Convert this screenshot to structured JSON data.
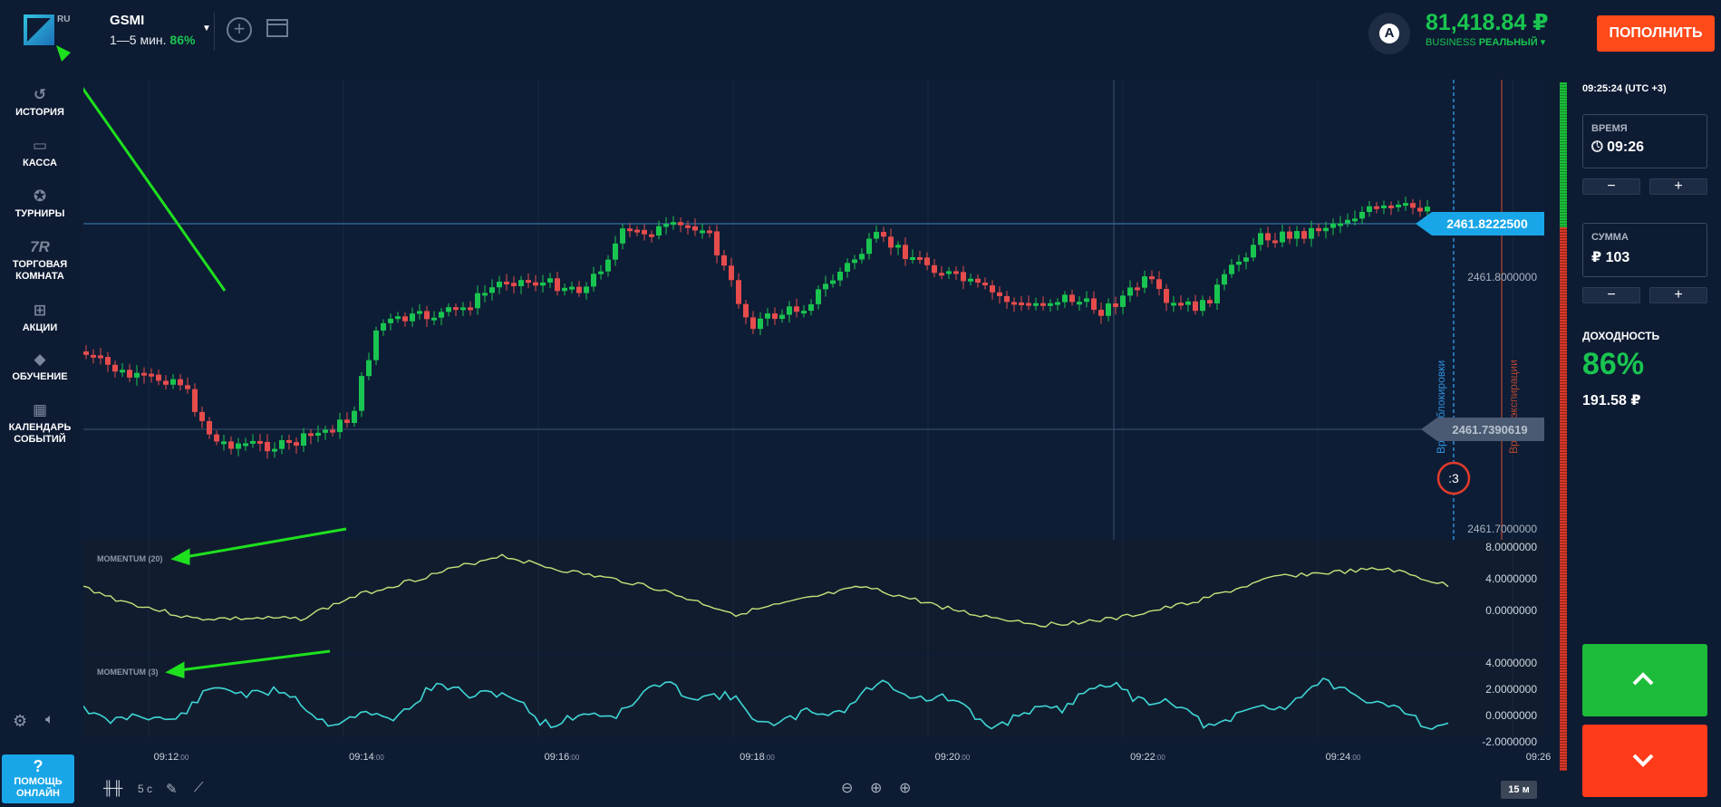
{
  "header": {
    "logo_badge": "RU",
    "asset_name": "GSMI",
    "asset_period": "1—5 мин.",
    "asset_payout": "86%",
    "account_icon": "A",
    "balance": "81,418.84 ₽",
    "account_type": "BUSINESS",
    "account_mode": "РЕАЛЬНЫЙ ▾",
    "deposit_label": "ПОПОЛНИТЬ"
  },
  "sidebar": {
    "items": [
      {
        "label": "ИСТОРИЯ",
        "icon": "history-icon"
      },
      {
        "label": "КАССА",
        "icon": "wallet-icon"
      },
      {
        "label": "ТУРНИРЫ",
        "icon": "star-icon"
      },
      {
        "label": "ТОРГОВАЯ КОМНАТА",
        "icon": "tr-icon",
        "glyph": "7R"
      },
      {
        "label": "АКЦИИ",
        "icon": "gift-icon"
      },
      {
        "label": "ОБУЧЕНИЕ",
        "icon": "graduation-cap-icon"
      },
      {
        "label": "КАЛЕНДАРЬ СОБЫТИЙ",
        "icon": "calendar-icon"
      }
    ],
    "help_icon": "?",
    "help_label": "ПОМОЩЬ ОНЛАЙН"
  },
  "chart": {
    "current_price": "2461.8222500",
    "strike_price": "2461.7390619",
    "price_ticks": [
      "2461.8000000",
      "2461.7000000"
    ],
    "blocking_label": "Время блокировки",
    "expiry_label": "Время экспирации",
    "countdown": ":3",
    "indicator1_label": "MOMENTUM (20)",
    "indicator1_ticks": [
      "8.0000000",
      "4.0000000",
      "0.0000000"
    ],
    "indicator2_label": "MOMENTUM (3)",
    "indicator2_ticks": [
      "4.0000000",
      "2.0000000",
      "0.0000000",
      "-2.0000000"
    ],
    "time_ticks": [
      "09:12",
      "09:14",
      "09:16",
      "09:18",
      "09:20",
      "09:22",
      "09:24",
      "09:26"
    ],
    "time_suffix": ":00"
  },
  "right_panel": {
    "clock": "09:25:24 (UTC +3)",
    "time_label": "ВРЕМЯ",
    "time_value": "09:26",
    "amount_label": "СУММА",
    "amount_value": "₽ 103",
    "minus": "−",
    "plus": "+",
    "profit_label": "ДОХОДНОСТЬ",
    "profit_pct": "86%",
    "profit_amount": "191.58 ₽"
  },
  "toolbar": {
    "interval": "5 с",
    "zoom_label": "15 м"
  },
  "colors": {
    "background": "#0d1b33",
    "up": "#19c550",
    "down": "#e64c4c",
    "accent": "#19a6e8",
    "deposit": "#ff4a1a"
  }
}
